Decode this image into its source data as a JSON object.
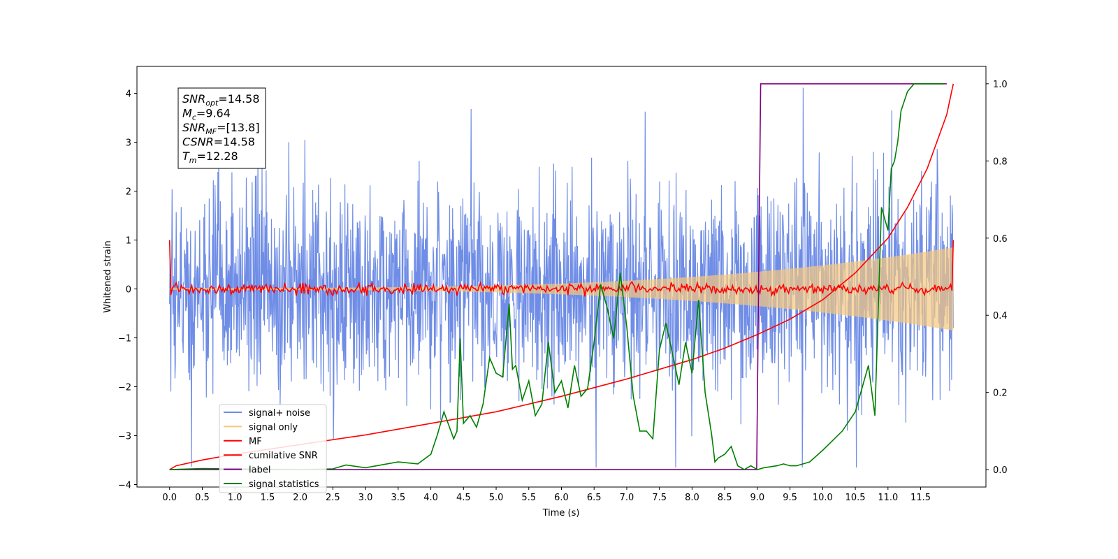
{
  "chart_data": {
    "type": "line",
    "xlabel": "Time (s)",
    "ylabel": "Whitened strain",
    "xlim": [
      -0.5,
      12.5
    ],
    "ylim": [
      -4.05,
      4.55
    ],
    "y2lim": [
      -0.045,
      1.045
    ],
    "xticks": [
      "0.0",
      "0.5",
      "1.0",
      "1.5",
      "2.0",
      "2.5",
      "3.0",
      "3.5",
      "4.0",
      "4.5",
      "5.0",
      "5.5",
      "6.0",
      "6.5",
      "7.0",
      "7.5",
      "8.0",
      "8.5",
      "9.0",
      "9.5",
      "10.0",
      "10.5",
      "11.0",
      "11.5"
    ],
    "yticks": [
      "4",
      "3",
      "2",
      "1",
      "0",
      "−1",
      "−2",
      "−3",
      "−4"
    ],
    "y2ticks": [
      "1.0",
      "0.8",
      "0.6",
      "0.4",
      "0.2",
      "0.0"
    ],
    "info_box": [
      {
        "name": "SNR",
        "sub": "opt",
        "value": "=14.58"
      },
      {
        "name": "M",
        "sub": "c",
        "value": "=9.64"
      },
      {
        "name": "SNR",
        "sub": "MF",
        "value": "=[13.8]"
      },
      {
        "name": "CSNR",
        "sub": "",
        "value": "=14.58"
      },
      {
        "name": "T",
        "sub": "m",
        "value": "=12.28"
      }
    ],
    "series": [
      {
        "name": "signal+ noise",
        "color": "#6f8de6",
        "axis": "left",
        "style": "noise band, approx ±1.8 typical, spikes to ±4"
      },
      {
        "name": "signal only",
        "color": "#f5c77e",
        "axis": "left",
        "style": "chirp envelope growing from 0 to ±0.85"
      },
      {
        "name": "MF",
        "color": "#ff0000",
        "axis": "left",
        "style": "noisy around 0, starts and ends at 1.0"
      },
      {
        "name": "cumilative SNR",
        "color": "#ff0000",
        "axis": "right",
        "x": [
          0.0,
          0.1,
          0.5,
          1.0,
          2.0,
          3.0,
          4.0,
          5.0,
          6.0,
          7.0,
          8.0,
          8.5,
          9.0,
          9.5,
          10.0,
          10.5,
          11.0,
          11.3,
          11.6,
          11.9,
          12.0
        ],
        "y": [
          0.0,
          0.01,
          0.025,
          0.04,
          0.065,
          0.09,
          0.12,
          0.15,
          0.19,
          0.235,
          0.285,
          0.315,
          0.35,
          0.39,
          0.44,
          0.51,
          0.6,
          0.68,
          0.78,
          0.92,
          1.0
        ]
      },
      {
        "name": "label",
        "color": "#800080",
        "axis": "right",
        "x": [
          0.0,
          8.99,
          9.05,
          11.9
        ],
        "y": [
          0.0,
          0.0,
          1.0,
          1.0
        ]
      },
      {
        "name": "signal statistics",
        "color": "#008000",
        "axis": "right",
        "x": [
          0.0,
          0.5,
          1.0,
          2.0,
          2.5,
          2.7,
          3.0,
          3.5,
          3.8,
          4.0,
          4.1,
          4.2,
          4.35,
          4.4,
          4.45,
          4.5,
          4.6,
          4.7,
          4.8,
          4.9,
          5.0,
          5.1,
          5.2,
          5.25,
          5.3,
          5.4,
          5.5,
          5.6,
          5.7,
          5.8,
          5.9,
          6.0,
          6.1,
          6.2,
          6.3,
          6.4,
          6.5,
          6.6,
          6.7,
          6.8,
          6.9,
          7.0,
          7.1,
          7.2,
          7.3,
          7.4,
          7.5,
          7.6,
          7.7,
          7.8,
          7.9,
          8.0,
          8.1,
          8.2,
          8.3,
          8.35,
          8.4,
          8.5,
          8.6,
          8.7,
          8.8,
          8.9,
          9.0,
          9.1,
          9.3,
          9.4,
          9.5,
          9.6,
          9.8,
          10.0,
          10.3,
          10.5,
          10.7,
          10.8,
          10.9,
          11.0,
          11.05,
          11.1,
          11.15,
          11.2,
          11.3,
          11.4,
          11.45,
          11.5,
          11.6,
          11.7,
          11.8,
          11.85
        ],
        "y": [
          0.0,
          0.003,
          0.002,
          0.0,
          0.002,
          0.012,
          0.005,
          0.02,
          0.015,
          0.04,
          0.09,
          0.15,
          0.08,
          0.1,
          0.34,
          0.12,
          0.14,
          0.11,
          0.17,
          0.29,
          0.25,
          0.24,
          0.43,
          0.26,
          0.27,
          0.18,
          0.23,
          0.14,
          0.17,
          0.33,
          0.2,
          0.23,
          0.16,
          0.27,
          0.19,
          0.21,
          0.33,
          0.48,
          0.42,
          0.34,
          0.51,
          0.37,
          0.19,
          0.1,
          0.1,
          0.08,
          0.31,
          0.38,
          0.3,
          0.22,
          0.33,
          0.25,
          0.44,
          0.2,
          0.09,
          0.02,
          0.03,
          0.04,
          0.06,
          0.01,
          0.0,
          0.01,
          0.0,
          0.005,
          0.01,
          0.015,
          0.01,
          0.01,
          0.02,
          0.05,
          0.1,
          0.15,
          0.27,
          0.14,
          0.68,
          0.62,
          0.78,
          0.8,
          0.85,
          0.93,
          0.98,
          1.0,
          1.0,
          1.0,
          1.0,
          1.0,
          1.0,
          1.0
        ]
      }
    ],
    "legend_placement": "lower-left"
  }
}
